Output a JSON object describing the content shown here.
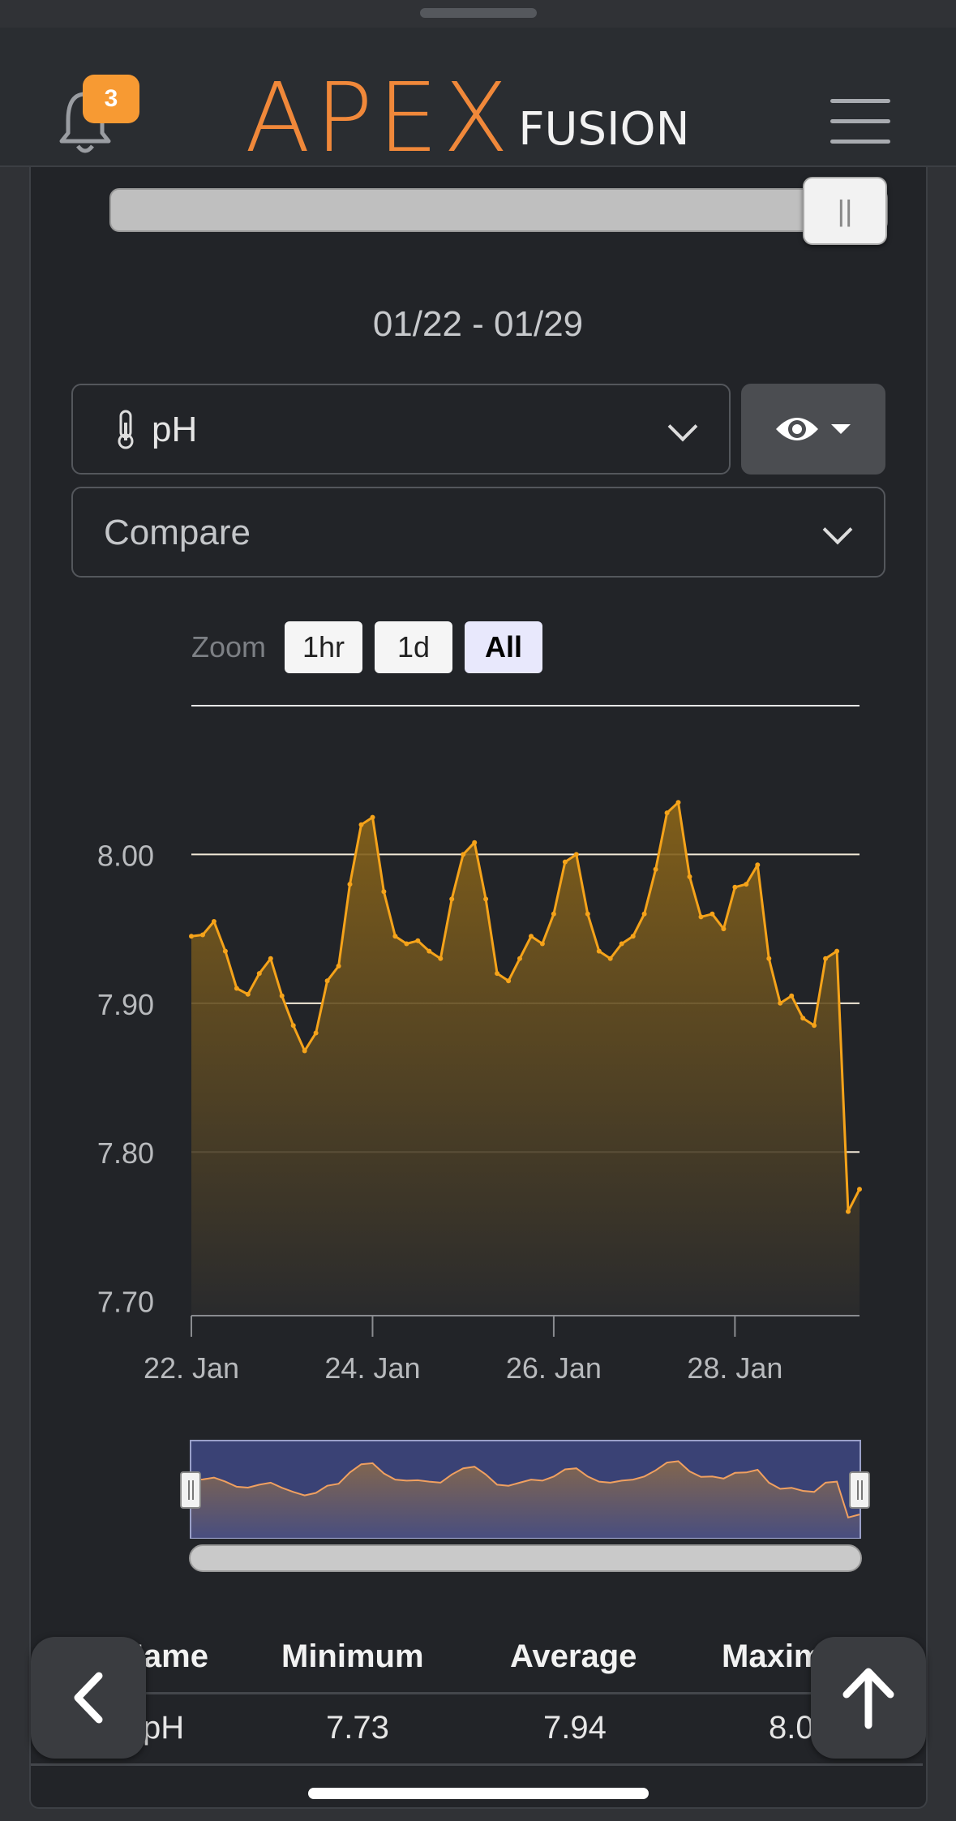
{
  "header": {
    "notification_count": "3",
    "logo_primary": "APEX",
    "logo_secondary": "FUSION"
  },
  "date_range": "01/22 - 01/29",
  "probe_select": {
    "value": "pH",
    "icon": "thermometer-icon"
  },
  "compare_select": {
    "value": "Compare"
  },
  "zoom": {
    "label": "Zoom",
    "options": [
      "1hr",
      "1d",
      "All"
    ],
    "active": "All"
  },
  "chart_data": {
    "type": "area",
    "series": [
      {
        "color": "#f5a31a",
        "x": [
          "2025-01-22 00:00",
          "2025-01-22 03:00",
          "2025-01-22 06:00",
          "2025-01-22 09:00",
          "2025-01-22 12:00",
          "2025-01-22 15:00",
          "2025-01-22 18:00",
          "2025-01-22 21:00",
          "2025-01-23 00:00",
          "2025-01-23 03:00",
          "2025-01-23 06:00",
          "2025-01-23 09:00",
          "2025-01-23 12:00",
          "2025-01-23 15:00",
          "2025-01-23 18:00",
          "2025-01-23 21:00",
          "2025-01-24 00:00",
          "2025-01-24 03:00",
          "2025-01-24 06:00",
          "2025-01-24 09:00",
          "2025-01-24 12:00",
          "2025-01-24 15:00",
          "2025-01-24 18:00",
          "2025-01-24 21:00",
          "2025-01-25 00:00",
          "2025-01-25 03:00",
          "2025-01-25 06:00",
          "2025-01-25 09:00",
          "2025-01-25 12:00",
          "2025-01-25 15:00",
          "2025-01-25 18:00",
          "2025-01-25 21:00",
          "2025-01-26 00:00",
          "2025-01-26 03:00",
          "2025-01-26 06:00",
          "2025-01-26 09:00",
          "2025-01-26 12:00",
          "2025-01-26 15:00",
          "2025-01-26 18:00",
          "2025-01-26 21:00",
          "2025-01-27 00:00",
          "2025-01-27 03:00",
          "2025-01-27 06:00",
          "2025-01-27 09:00",
          "2025-01-27 12:00",
          "2025-01-27 15:00",
          "2025-01-27 18:00",
          "2025-01-27 21:00",
          "2025-01-28 00:00",
          "2025-01-28 03:00",
          "2025-01-28 06:00",
          "2025-01-28 09:00",
          "2025-01-28 12:00",
          "2025-01-28 15:00",
          "2025-01-28 18:00",
          "2025-01-28 21:00",
          "2025-01-29 00:00",
          "2025-01-29 03:00",
          "2025-01-29 06:00",
          "2025-01-29 09:00"
        ],
        "y": [
          7.945,
          7.946,
          7.955,
          7.935,
          7.91,
          7.906,
          7.92,
          7.93,
          7.905,
          7.885,
          7.868,
          7.88,
          7.915,
          7.925,
          7.98,
          8.02,
          8.025,
          7.975,
          7.945,
          7.94,
          7.942,
          7.935,
          7.93,
          7.97,
          8.0,
          8.008,
          7.97,
          7.92,
          7.915,
          7.93,
          7.945,
          7.94,
          7.96,
          7.995,
          8.0,
          7.96,
          7.935,
          7.93,
          7.94,
          7.945,
          7.96,
          7.99,
          8.028,
          8.035,
          7.985,
          7.958,
          7.96,
          7.95,
          7.978,
          7.98,
          7.993,
          7.93,
          7.9,
          7.905,
          7.89,
          7.885,
          7.93,
          7.935,
          7.76,
          7.775
        ]
      }
    ],
    "y_ticks": [
      "7.70",
      "7.80",
      "7.90",
      "8.00"
    ],
    "x_ticks": [
      "22. Jan",
      "24. Jan",
      "26. Jan",
      "28. Jan"
    ],
    "ylim": [
      7.69,
      8.1
    ],
    "grid": true
  },
  "stats_table": {
    "headers": [
      "Name",
      "Minimum",
      "Average",
      "Maximum"
    ],
    "row": [
      "pH",
      "7.73",
      "7.94",
      "8.0"
    ]
  }
}
